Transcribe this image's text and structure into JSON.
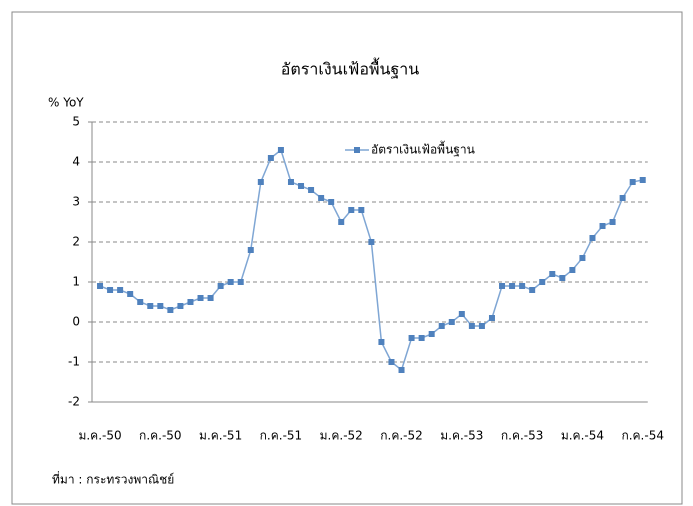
{
  "chart_data": {
    "type": "line",
    "title": "อัตราเงินเฟ้อพื้นฐาน",
    "y_label": "% YoY",
    "source": "ที่มา : กระทรวงพาณิชย์",
    "categories": [
      "ม.ค.-50",
      null,
      null,
      null,
      null,
      null,
      "ก.ค.-50",
      null,
      null,
      null,
      null,
      null,
      "ม.ค.-51",
      null,
      null,
      null,
      null,
      null,
      "ก.ค.-51",
      null,
      null,
      null,
      null,
      null,
      "ม.ค.-52",
      null,
      null,
      null,
      null,
      null,
      "ก.ค.-52",
      null,
      null,
      null,
      null,
      null,
      "ม.ค.-53",
      null,
      null,
      null,
      null,
      null,
      "ก.ค.-53",
      null,
      null,
      null,
      null,
      null,
      "ม.ค.-54",
      null,
      null,
      null,
      null,
      null,
      "ก.ค.-54"
    ],
    "series": [
      {
        "name": "อัตราเงินเฟ้อพื้นฐาน",
        "color": "#4f81bd",
        "line_color": "#7fa6d4",
        "values": [
          0.9,
          0.8,
          0.8,
          0.7,
          0.5,
          0.4,
          0.4,
          0.3,
          0.4,
          0.5,
          0.6,
          0.6,
          0.9,
          1.0,
          1.0,
          1.8,
          3.5,
          4.1,
          4.3,
          3.5,
          3.4,
          3.3,
          3.1,
          3.0,
          2.5,
          2.8,
          2.8,
          2.0,
          -0.5,
          -1.0,
          -1.2,
          -0.4,
          -0.4,
          -0.3,
          -0.1,
          0.0,
          0.2,
          -0.1,
          -0.1,
          0.1,
          0.9,
          0.9,
          0.9,
          0.8,
          1.0,
          1.2,
          1.1,
          1.3,
          1.6,
          2.1,
          2.4,
          2.5,
          3.1,
          3.5,
          3.55
        ]
      }
    ],
    "ylim": [
      -2,
      5
    ],
    "yticks": [
      -2,
      -1,
      0,
      1,
      2,
      3,
      4,
      5
    ],
    "grid": true,
    "legend": "top"
  }
}
